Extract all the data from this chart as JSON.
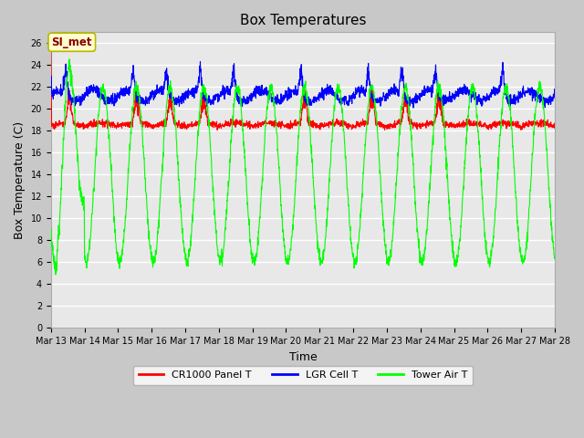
{
  "title": "Box Temperatures",
  "xlabel": "Time",
  "ylabel": "Box Temperature (C)",
  "ylim": [
    0,
    27
  ],
  "yticks": [
    0,
    2,
    4,
    6,
    8,
    10,
    12,
    14,
    16,
    18,
    20,
    22,
    24,
    26
  ],
  "x_labels": [
    "Mar 13",
    "Mar 14",
    "Mar 15",
    "Mar 16",
    "Mar 17",
    "Mar 18",
    "Mar 19",
    "Mar 20",
    "Mar 21",
    "Mar 22",
    "Mar 23",
    "Mar 24",
    "Mar 25",
    "Mar 26",
    "Mar 27",
    "Mar 28"
  ],
  "annotation_text": "SI_met",
  "fig_bg": "#c8c8c8",
  "plot_bg": "#e8e8e8",
  "grid_color": "#ffffff",
  "title_fontsize": 11,
  "axis_label_fontsize": 9,
  "tick_fontsize": 7,
  "legend_fontsize": 8
}
